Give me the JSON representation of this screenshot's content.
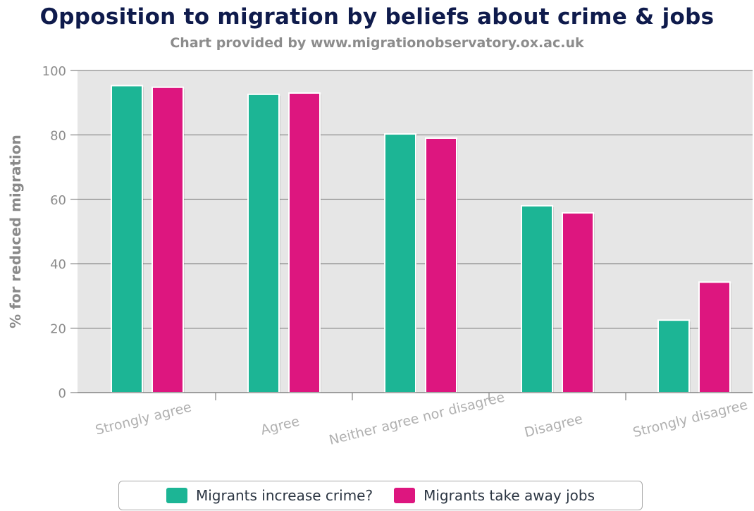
{
  "chart_data": {
    "type": "bar",
    "title": "Opposition to migration by beliefs about crime & jobs",
    "subtitle": "Chart provided by www.migrationobservatory.ox.ac.uk",
    "xlabel": "",
    "ylabel": "% for reduced migration",
    "categories": [
      "Strongly agree",
      "Agree",
      "Neither agree nor disagree",
      "Disagree",
      "Strongly disagree"
    ],
    "series": [
      {
        "name": "Migrants increase crime?",
        "color": "#1cb595",
        "values": [
          95.3,
          92.6,
          80.3,
          58.0,
          22.5
        ]
      },
      {
        "name": "Migrants take away jobs",
        "color": "#dd167f",
        "values": [
          94.8,
          93.0,
          79.0,
          55.8,
          34.3
        ]
      }
    ],
    "ylim": [
      0,
      100
    ],
    "yticks": [
      0,
      20,
      40,
      60,
      80,
      100
    ],
    "grid": true,
    "legend_position": "bottom-center"
  }
}
